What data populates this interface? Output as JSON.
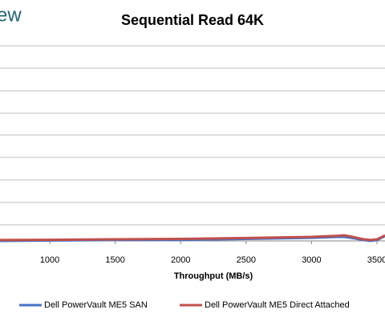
{
  "logo_text": "ew",
  "chart_data": {
    "type": "line",
    "title": "Sequential Read 64K",
    "xlabel": "Throughput (MB/s)",
    "x": [
      620,
      1000,
      1500,
      2000,
      2500,
      3000,
      3200,
      3250,
      3300,
      3400,
      3450,
      3500,
      3561
    ],
    "series": [
      {
        "name": "Dell PowerVault ME5 SAN",
        "color": "#4472c4",
        "values": [
          0,
          0.02,
          0.04,
          0.05,
          0.09,
          0.14,
          0.18,
          0.18,
          0.14,
          0.04,
          0,
          0.04,
          0.22
        ]
      },
      {
        "name": "Dell PowerVault ME5 Direct Attached",
        "color": "#c0504d",
        "values": [
          0.04,
          0.05,
          0.07,
          0.09,
          0.13,
          0.18,
          0.23,
          0.25,
          0.2,
          0.07,
          0.04,
          0.07,
          0.25
        ]
      }
    ],
    "xlim": [
      620,
      3561
    ],
    "xticks": [
      1000,
      1500,
      2000,
      2500,
      3000,
      3500
    ],
    "ylim": [
      0,
      10
    ],
    "grid": true,
    "legend": "bottom"
  }
}
